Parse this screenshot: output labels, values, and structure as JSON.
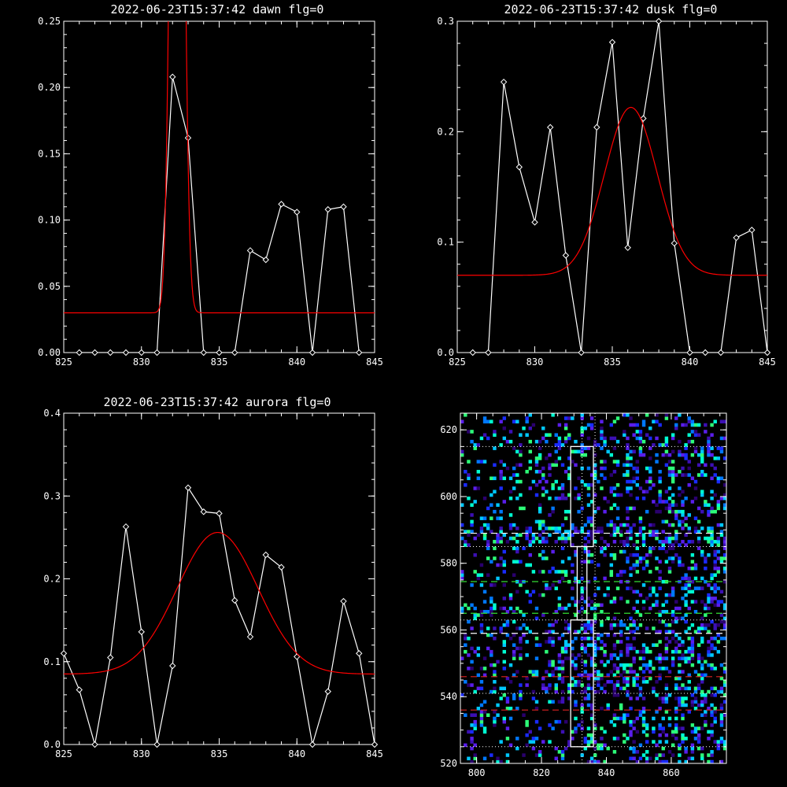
{
  "chart_data": [
    {
      "type": "line",
      "title": "2022-06-23T15:37:42 dawn flg=0",
      "xlim": [
        825,
        845
      ],
      "ylim": [
        0,
        0.25
      ],
      "xticks": [
        "825",
        "830",
        "835",
        "840",
        "845"
      ],
      "yticks": [
        "0.00",
        "0.05",
        "0.10",
        "0.15",
        "0.20",
        "0.25"
      ],
      "series": [
        {
          "color": "#ffffff",
          "markers": "diamond",
          "x": [
            826,
            827,
            828,
            829,
            830,
            831,
            832,
            833,
            834,
            835,
            836,
            837,
            838,
            839,
            840,
            841,
            842,
            843,
            844
          ],
          "y": [
            0,
            0,
            0,
            0,
            0,
            0,
            0.208,
            0.162,
            0,
            0,
            0,
            0.077,
            0.07,
            0.112,
            0.106,
            0,
            0.108,
            0.11,
            0
          ]
        },
        {
          "color": "#ff0000",
          "fit": "gaussian",
          "baseline": 0.03,
          "amp": 0.85,
          "center": 832.3,
          "sigma": 0.35
        }
      ]
    },
    {
      "type": "line",
      "title": "2022-06-23T15:37:42 dusk flg=0",
      "xlim": [
        825,
        845
      ],
      "ylim": [
        0,
        0.3
      ],
      "xticks": [
        "825",
        "830",
        "835",
        "840",
        "845"
      ],
      "yticks": [
        "0.0",
        "0.1",
        "0.2",
        "0.3"
      ],
      "series": [
        {
          "color": "#ffffff",
          "markers": "diamond",
          "x": [
            826,
            827,
            828,
            829,
            830,
            831,
            832,
            833,
            834,
            835,
            836,
            837,
            838,
            839,
            840,
            841,
            842,
            843,
            844,
            845
          ],
          "y": [
            0,
            0,
            0.245,
            0.168,
            0.118,
            0.204,
            0.088,
            0,
            0.204,
            0.281,
            0.095,
            0.212,
            0.3,
            0.099,
            0,
            0,
            0,
            0.104,
            0.111,
            0
          ]
        },
        {
          "color": "#ff0000",
          "fit": "gaussian",
          "baseline": 0.07,
          "amp": 0.152,
          "center": 836.2,
          "sigma": 1.7
        }
      ]
    },
    {
      "type": "line",
      "title": "2022-06-23T15:37:42 aurora flg=0",
      "xlim": [
        825,
        845
      ],
      "ylim": [
        0,
        0.4
      ],
      "xticks": [
        "825",
        "830",
        "835",
        "840",
        "845"
      ],
      "yticks": [
        "0.0",
        "0.1",
        "0.2",
        "0.3",
        "0.4"
      ],
      "series": [
        {
          "color": "#ffffff",
          "markers": "diamond",
          "x": [
            825,
            826,
            827,
            828,
            829,
            830,
            831,
            832,
            833,
            834,
            835,
            836,
            837,
            838,
            839,
            840,
            841,
            842,
            843,
            844,
            845
          ],
          "y": [
            0.11,
            0.066,
            0,
            0.105,
            0.263,
            0.136,
            0,
            0.095,
            0.31,
            0.281,
            0.279,
            0.174,
            0.13,
            0.229,
            0.214,
            0.106,
            0,
            0.064,
            0.173,
            0.11,
            0
          ]
        },
        {
          "color": "#ff0000",
          "fit": "gaussian",
          "baseline": 0.085,
          "amp": 0.171,
          "center": 834.9,
          "sigma": 2.6
        }
      ]
    },
    {
      "type": "heatmap",
      "title": "",
      "xlim": [
        795,
        877
      ],
      "ylim": [
        520,
        625
      ],
      "xticks": [
        "800",
        "820",
        "840",
        "860"
      ],
      "yticks": [
        "520",
        "540",
        "560",
        "580",
        "600",
        "620"
      ],
      "palette": [
        "#2a006e",
        "#3c10b4",
        "#5a1eeb",
        "#1a2bff",
        "#0078ff",
        "#00c8ff",
        "#00ffd2",
        "#2dff78"
      ],
      "boxes": [
        {
          "x0": 829,
          "x1": 836,
          "y0": 585,
          "y1": 615,
          "color": "#ffffff"
        },
        {
          "x0": 831,
          "x1": 834,
          "y0": 563,
          "y1": 585,
          "color": "#ffffff"
        },
        {
          "x0": 829,
          "x1": 836,
          "y0": 525,
          "y1": 563,
          "color": "#ffffff"
        }
      ],
      "dotted_h": [
        615,
        585,
        563,
        541,
        525
      ],
      "dotted_v": [
        832.5,
        836.5
      ],
      "dashed_h": [
        {
          "y": 589,
          "color": "#ffffff"
        },
        {
          "y": 574.5,
          "color": "#33dd33"
        },
        {
          "y": 565,
          "color": "#33dd33"
        },
        {
          "y": 559,
          "color": "#ffffff"
        },
        {
          "y": 546,
          "color": "#dd2222"
        },
        {
          "y": 536,
          "color": "#dd2222"
        }
      ]
    }
  ]
}
